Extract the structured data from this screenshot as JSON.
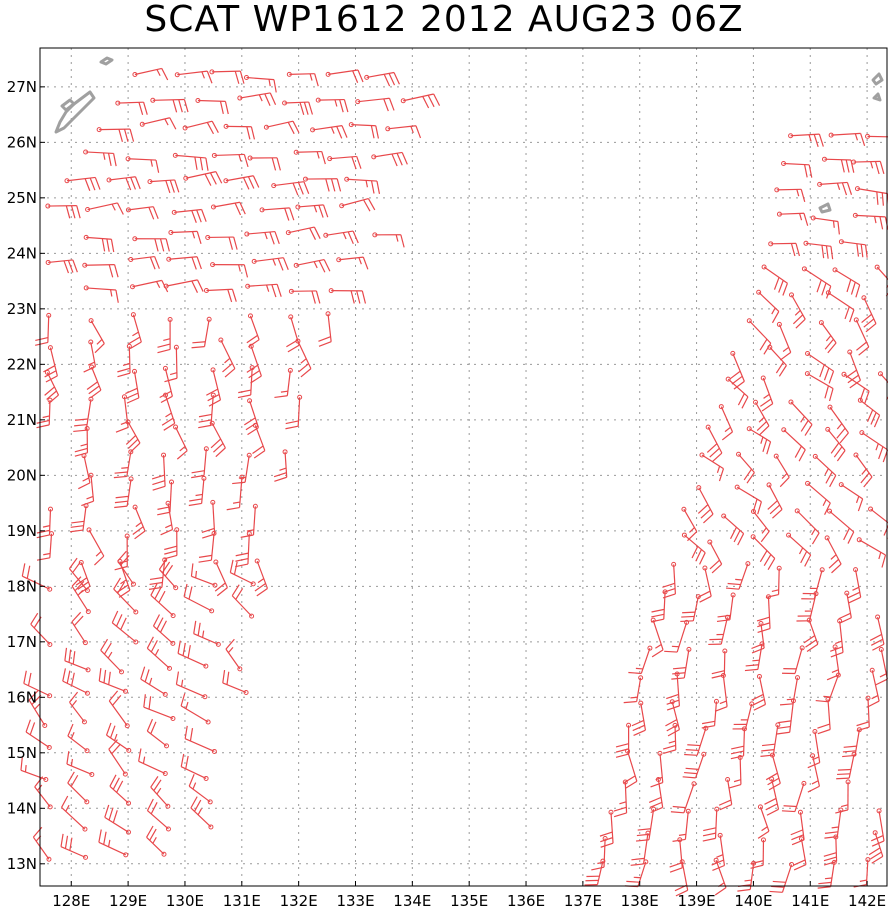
{
  "title": "SCAT WP1612 2012 AUG23 06Z",
  "map": {
    "lon_range": [
      127.45,
      142.35
    ],
    "lat_range": [
      12.6,
      27.7
    ],
    "lon_ticks": [
      128,
      129,
      130,
      131,
      132,
      133,
      134,
      135,
      136,
      137,
      138,
      139,
      140,
      141,
      142
    ],
    "lon_labels": [
      "128E",
      "129E",
      "130E",
      "131E",
      "132E",
      "133E",
      "134E",
      "135E",
      "136E",
      "137E",
      "138E",
      "139E",
      "140E",
      "141E",
      "142E"
    ],
    "lat_ticks": [
      13,
      14,
      15,
      16,
      17,
      18,
      19,
      20,
      21,
      22,
      23,
      24,
      25,
      26,
      27
    ],
    "lat_labels": [
      "13N",
      "14N",
      "15N",
      "16N",
      "17N",
      "18N",
      "19N",
      "20N",
      "21N",
      "22N",
      "23N",
      "24N",
      "25N",
      "26N",
      "27N"
    ],
    "grid": true,
    "colors": {
      "barb": "#e8484b",
      "land": "#a0a0a0",
      "grid": "#9a9a9a",
      "frame": "#000000"
    }
  }
}
